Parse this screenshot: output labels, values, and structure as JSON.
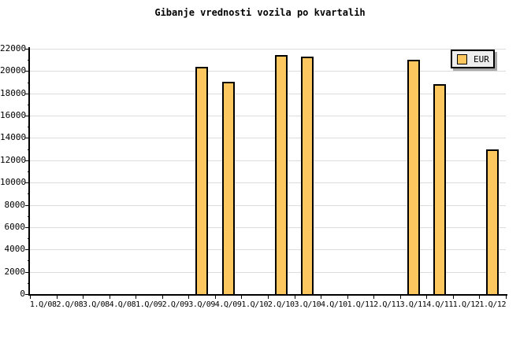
{
  "chart_data": {
    "type": "bar",
    "title": "Gibanje vrednosti vozila po kvartalih",
    "categories": [
      "1.Q/08",
      "2.Q/08",
      "3.Q/08",
      "4.Q/08",
      "1.Q/09",
      "2.Q/09",
      "3.Q/09",
      "4.Q/09",
      "1.Q/10",
      "2.Q/10",
      "3.Q/10",
      "4.Q/10",
      "1.Q/11",
      "2.Q/11",
      "3.Q/11",
      "4.Q/11",
      "1.Q/12",
      "1.Q/12"
    ],
    "series": [
      {
        "name": "EUR",
        "values": [
          null,
          null,
          null,
          null,
          null,
          null,
          20400,
          19050,
          null,
          21450,
          21300,
          null,
          null,
          null,
          21000,
          18850,
          null,
          13000
        ]
      }
    ],
    "xlabel": "",
    "ylabel": "",
    "ylim": [
      0,
      22000
    ],
    "ytick_major_interval": 2000,
    "ytick_minor_interval": 1000,
    "grid": "horizontal-major-only",
    "legend_position": "top-right"
  },
  "colors": {
    "background": "#FFFFFF",
    "bar_fill": "#FDC75F",
    "bar_border": "#000000",
    "grid": "#DCDCDC",
    "axis": "#000000",
    "text": "#000000",
    "legend_bg": "#EEEEEE",
    "legend_border": "#000000",
    "legend_shadow": "#A9A9A9"
  }
}
